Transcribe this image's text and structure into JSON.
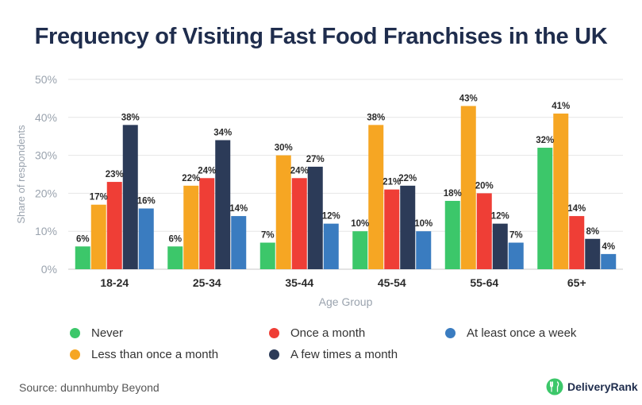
{
  "title": "Frequency of Visiting Fast Food Franchises in the UK",
  "source": "Source: dunnhumby Beyond",
  "brand": "DeliveryRank",
  "colors": {
    "never": "#3cc76a",
    "less": "#f6a623",
    "once": "#ef3e36",
    "few": "#2c3b58",
    "week": "#3a7cc0"
  },
  "chart_data": {
    "type": "bar",
    "title": "Frequency of Visiting Fast Food Franchises in the UK",
    "xlabel": "Age Group",
    "ylabel": "Share of respondents",
    "ylim": [
      0,
      50
    ],
    "yticks": [
      0,
      10,
      20,
      30,
      40,
      50
    ],
    "ytick_labels": [
      "0%",
      "10%",
      "20%",
      "30%",
      "40%",
      "50%"
    ],
    "grid": true,
    "categories": [
      "18-24",
      "25-34",
      "35-44",
      "45-54",
      "55-64",
      "65+"
    ],
    "series": [
      {
        "key": "never",
        "name": "Never",
        "values": [
          6,
          6,
          7,
          10,
          18,
          32
        ]
      },
      {
        "key": "less",
        "name": "Less than once a month",
        "values": [
          17,
          22,
          30,
          38,
          43,
          41
        ]
      },
      {
        "key": "once",
        "name": "Once a month",
        "values": [
          23,
          24,
          24,
          21,
          20,
          14
        ]
      },
      {
        "key": "few",
        "name": "A few times a month",
        "values": [
          38,
          34,
          27,
          22,
          12,
          8
        ]
      },
      {
        "key": "week",
        "name": "At least once a week",
        "values": [
          16,
          14,
          12,
          10,
          7,
          4
        ]
      }
    ],
    "legend_position": "bottom"
  }
}
